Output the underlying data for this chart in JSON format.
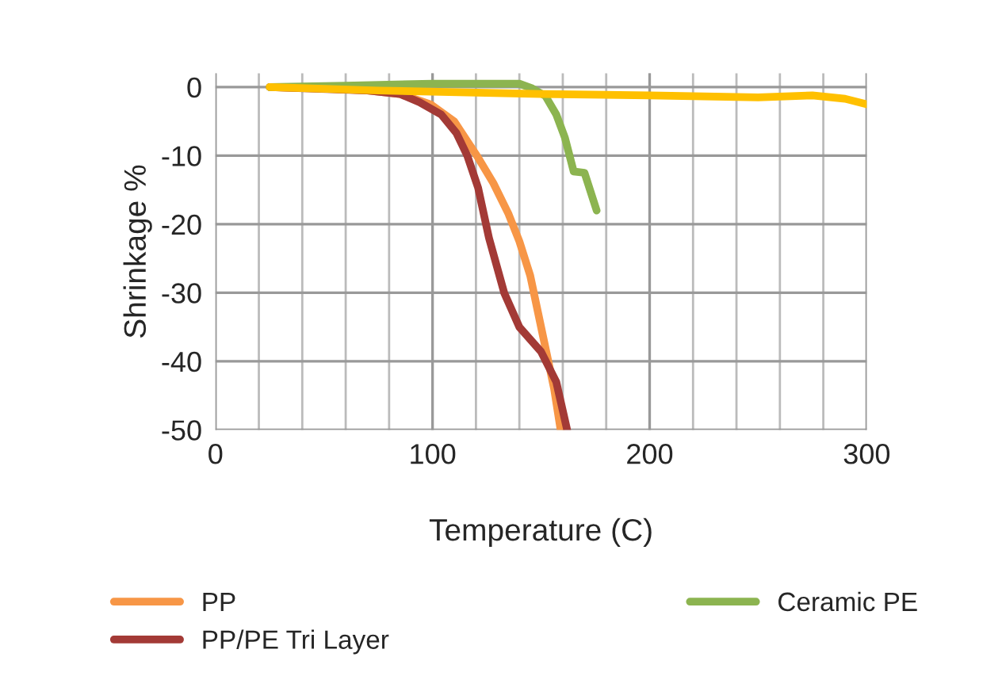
{
  "chart_data": {
    "type": "line",
    "xlabel": "Temperature (C)",
    "ylabel": "Shrinkage %",
    "xlim": [
      0,
      300
    ],
    "xticks": [
      0,
      100,
      200,
      300
    ],
    "ylim": [
      -50,
      2
    ],
    "yticks": [
      -50,
      -40,
      -30,
      -20,
      -10,
      0
    ],
    "grid": true,
    "legend": "bottom",
    "marker": "none",
    "line_style": "solid",
    "series": [
      {
        "name": "PP",
        "color": "#f79646",
        "x": [
          25,
          50,
          70,
          85,
          99,
          110,
          121,
          128,
          135,
          140,
          145,
          152,
          156,
          159
        ],
        "values": [
          0,
          -0.2,
          -0.5,
          -1,
          -2.5,
          -5,
          -10.3,
          -14,
          -18.5,
          -22.5,
          -27.5,
          -38,
          -44,
          -50
        ]
      },
      {
        "name": "PP/PE Tri Layer",
        "color": "#a33a36",
        "x": [
          25,
          50,
          70,
          85,
          94,
          104,
          111,
          116,
          121,
          126,
          133,
          140,
          150,
          157,
          162
        ],
        "values": [
          0,
          null,
          -0.5,
          -1,
          -2.2,
          -4,
          -6.7,
          -10,
          -14.7,
          -22,
          -30,
          -35,
          -38.6,
          -43,
          -50
        ]
      },
      {
        "name": "Ceramic PE",
        "color": "#8cb450",
        "x": [
          25,
          60,
          100,
          130,
          140,
          146,
          152,
          157,
          161,
          165,
          170,
          175.6
        ],
        "values": [
          0,
          0.2,
          0.5,
          0.5,
          0.5,
          -0.2,
          -1.3,
          -4,
          -7.4,
          -12.3,
          -12.5,
          -18
        ]
      },
      {
        "name": null,
        "color": "#ffc000",
        "x": [
          25,
          75,
          150,
          200,
          250,
          275,
          290,
          300
        ],
        "values": [
          0,
          -0.5,
          -1,
          -1.2,
          -1.5,
          -1.2,
          -1.7,
          -2.5
        ]
      }
    ]
  }
}
